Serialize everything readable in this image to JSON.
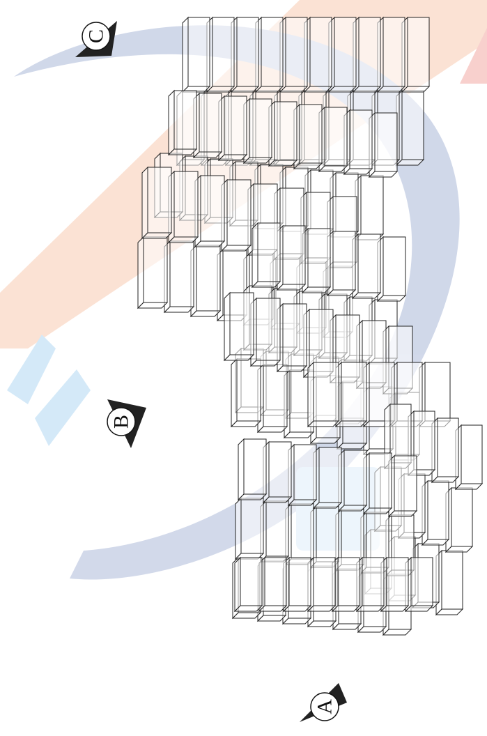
{
  "viewpoints": [
    {
      "label": "C"
    },
    {
      "label": "B"
    },
    {
      "label": "A"
    }
  ]
}
